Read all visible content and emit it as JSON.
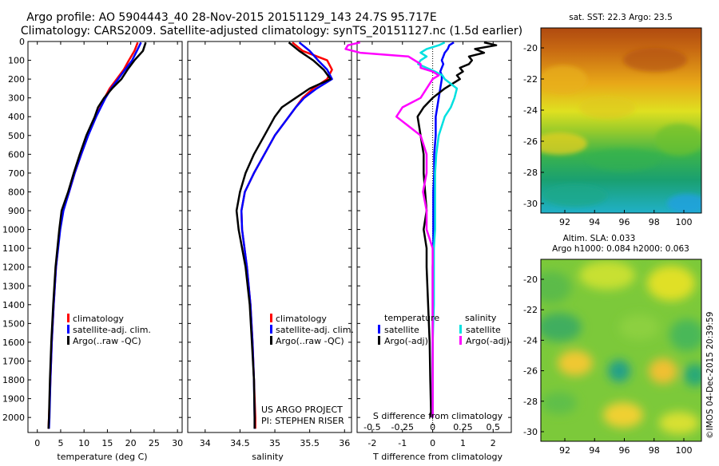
{
  "header": {
    "title_line1": "Argo profile: AO 5904443_40 28-Nov-2015 20151129_143 24.7S 95.717E",
    "title_line2": "Climatology: CARS2009. Satellite-adjusted climatology: synTS_20151127.nc (1.5d earlier)"
  },
  "colors": {
    "climatology": "#ff0000",
    "satellite": "#0000ff",
    "argo": "#000000",
    "sal_satellite": "#00e0e0",
    "sal_argo": "#ff00ff"
  },
  "chart_data": [
    {
      "type": "line",
      "id": "temperature",
      "xlabel": "temperature (deg C)",
      "xlim": [
        -2,
        31
      ],
      "xticks": [
        0,
        5,
        10,
        15,
        20,
        25,
        30
      ],
      "xtick_labels": [
        "0",
        "5",
        "10",
        "15",
        "20",
        "25",
        "30"
      ],
      "ylim": [
        0,
        2080
      ],
      "yticks": [
        0,
        100,
        200,
        300,
        400,
        500,
        600,
        700,
        800,
        900,
        1000,
        1100,
        1200,
        1300,
        1400,
        1500,
        1600,
        1700,
        1800,
        1900,
        2000
      ],
      "ytick_labels": [
        "0",
        "100",
        "200",
        "300",
        "400",
        "500",
        "600",
        "700",
        "800",
        "900",
        "1000",
        "1100",
        "1200",
        "1300",
        "1400",
        "1500",
        "1600",
        "1700",
        "1800",
        "1900",
        "2000"
      ],
      "legend": [
        "climatology",
        "satellite-adj. clim.",
        "Argo(..raw -QC)"
      ],
      "depth": [
        5,
        50,
        100,
        150,
        200,
        250,
        300,
        350,
        400,
        500,
        600,
        700,
        800,
        900,
        1000,
        1200,
        1400,
        1600,
        1800,
        2000,
        2060
      ],
      "series": [
        {
          "name": "climatology",
          "color": "#ff0000",
          "values": [
            21.5,
            20.8,
            19.6,
            18.5,
            17.0,
            15.5,
            14.4,
            13.5,
            12.5,
            10.8,
            9.4,
            8.0,
            6.8,
            5.5,
            4.8,
            4.0,
            3.5,
            3.1,
            2.8,
            2.5,
            2.4
          ]
        },
        {
          "name": "satellite-adj. clim.",
          "color": "#0000ff",
          "values": [
            22.2,
            21.3,
            20.3,
            18.8,
            17.3,
            15.8,
            14.6,
            13.6,
            12.6,
            10.9,
            9.4,
            8.0,
            6.8,
            5.6,
            4.9,
            4.0,
            3.5,
            3.1,
            2.8,
            2.6,
            2.5
          ]
        },
        {
          "name": "Argo(..raw -QC)",
          "color": "#000000",
          "values": [
            23.2,
            22.6,
            20.8,
            19.3,
            18.0,
            16.0,
            14.3,
            13.0,
            12.3,
            10.5,
            9.1,
            7.8,
            6.6,
            5.2,
            4.7,
            3.9,
            3.4,
            3.0,
            2.7,
            2.5,
            2.4
          ]
        }
      ]
    },
    {
      "type": "line",
      "id": "salinity",
      "xlabel": "salinity",
      "xlim": [
        33.75,
        36.1
      ],
      "xticks": [
        34,
        34.5,
        35,
        35.5,
        36
      ],
      "xtick_labels": [
        "34",
        "34.5",
        "35",
        "35.5",
        "36"
      ],
      "ylim": [
        0,
        2080
      ],
      "legend": [
        "climatology",
        "satellite-adj. clim.",
        "Argo(..raw -QC)"
      ],
      "annotation": [
        "US ARGO PROJECT",
        "PI: STEPHEN RISER"
      ],
      "depth": [
        5,
        50,
        100,
        150,
        200,
        250,
        300,
        350,
        400,
        500,
        600,
        700,
        800,
        900,
        1000,
        1200,
        1400,
        1600,
        1800,
        2000,
        2060
      ],
      "series": [
        {
          "name": "climatology",
          "color": "#ff0000",
          "values": [
            35.25,
            35.4,
            35.75,
            35.82,
            35.75,
            35.55,
            35.4,
            35.3,
            35.2,
            35.0,
            34.85,
            34.7,
            34.57,
            34.52,
            34.53,
            34.6,
            34.65,
            34.68,
            34.7,
            34.72,
            34.72
          ]
        },
        {
          "name": "satellite-adj. clim.",
          "color": "#0000ff",
          "values": [
            35.35,
            35.5,
            35.62,
            35.75,
            35.82,
            35.6,
            35.42,
            35.3,
            35.2,
            35.0,
            34.85,
            34.7,
            34.57,
            34.52,
            34.53,
            34.6,
            34.65,
            34.68,
            34.7,
            34.71,
            34.71
          ]
        },
        {
          "name": "Argo(..raw -QC)",
          "color": "#000000",
          "values": [
            35.2,
            35.35,
            35.55,
            35.7,
            35.8,
            35.5,
            35.3,
            35.1,
            35.0,
            34.85,
            34.7,
            34.58,
            34.5,
            34.45,
            34.48,
            34.58,
            34.64,
            34.67,
            34.7,
            34.71,
            34.71
          ]
        }
      ]
    },
    {
      "type": "line",
      "id": "difference",
      "xlabel": "T difference from climatology",
      "xlabel2": "S difference from climatology",
      "xlim": [
        -2.5,
        2.6
      ],
      "xticks": [
        -2,
        -1,
        0,
        1,
        2
      ],
      "xtick_labels": [
        "-2",
        "-1",
        "0",
        "1",
        "2"
      ],
      "top_ticks": [
        -0.5,
        -0.25,
        0,
        0.25,
        0.5
      ],
      "top_tick_labels": [
        "-0.5",
        "-0.25",
        "0",
        "0.25",
        "0.5"
      ],
      "ylim": [
        0,
        2080
      ],
      "legend_temp_title": "temperature",
      "legend_sal_title": "salinity",
      "legend": [
        "satellite",
        "Argo(-adj)",
        "satellite",
        "Argo(-adj)"
      ],
      "depth": [
        5,
        20,
        40,
        60,
        80,
        100,
        120,
        140,
        160,
        180,
        200,
        250,
        300,
        350,
        400,
        500,
        600,
        700,
        800,
        900,
        1000,
        1100,
        1200,
        1400,
        1600,
        1800,
        2000
      ],
      "series": [
        {
          "name": "temperature satellite",
          "color": "#0000ff",
          "values": [
            0.7,
            0.55,
            0.5,
            0.4,
            0.35,
            0.3,
            0.35,
            0.3,
            0.25,
            0.3,
            0.3,
            0.25,
            0.2,
            0.15,
            0.1,
            0.1,
            0.05,
            0.05,
            0.02,
            0.02,
            0.02,
            0.02,
            0.0,
            0.0,
            0.0,
            0.0,
            0.0
          ]
        },
        {
          "name": "temperature Argo(-adj)",
          "color": "#000000",
          "values": [
            1.7,
            2.1,
            1.4,
            1.7,
            1.2,
            1.3,
            1.2,
            0.9,
            1.0,
            0.8,
            0.9,
            0.4,
            0.0,
            -0.3,
            -0.5,
            -0.4,
            -0.3,
            -0.3,
            -0.25,
            -0.2,
            -0.3,
            -0.2,
            -0.2,
            -0.15,
            -0.1,
            -0.08,
            -0.05
          ]
        },
        {
          "name": "salinity satellite",
          "color": "#00e0e0",
          "values": [
            0.1,
            0.05,
            -0.05,
            -0.1,
            -0.05,
            -0.1,
            -0.12,
            -0.05,
            0.02,
            0.08,
            0.1,
            0.2,
            0.18,
            0.15,
            0.1,
            0.05,
            0.03,
            0.02,
            0.02,
            0.02,
            0.02,
            0.01,
            0.01,
            0.01,
            0.0,
            0.0,
            0.0
          ]
        },
        {
          "name": "salinity Argo(-adj)",
          "color": "#ff00ff",
          "values": [
            -0.6,
            -0.7,
            -0.72,
            -0.6,
            -0.2,
            -0.15,
            -0.1,
            -0.1,
            0.0,
            0.05,
            0.0,
            -0.05,
            -0.1,
            -0.25,
            -0.3,
            -0.1,
            -0.05,
            -0.05,
            -0.08,
            -0.05,
            -0.05,
            0.0,
            0.0,
            0.0,
            0.0,
            0.0,
            0.0
          ]
        }
      ]
    }
  ],
  "maps": {
    "sst": {
      "title": "sat. SST: 22.3  Argo: 23.5",
      "xticks": [
        "92",
        "94",
        "96",
        "98",
        "100"
      ],
      "yticks": [
        "-20",
        "-22",
        "-24",
        "-26",
        "-28",
        "-30"
      ]
    },
    "sla": {
      "title_line1": "Altim. SLA: 0.033",
      "title_line2": "Argo h1000: 0.084 h2000: 0.063",
      "xticks": [
        "92",
        "94",
        "96",
        "98",
        "100"
      ],
      "yticks": [
        "-20",
        "-22",
        "-24",
        "-26",
        "-28",
        "-30"
      ]
    },
    "credit": "©IMOS 04-Dec-2015 20:39:59"
  }
}
